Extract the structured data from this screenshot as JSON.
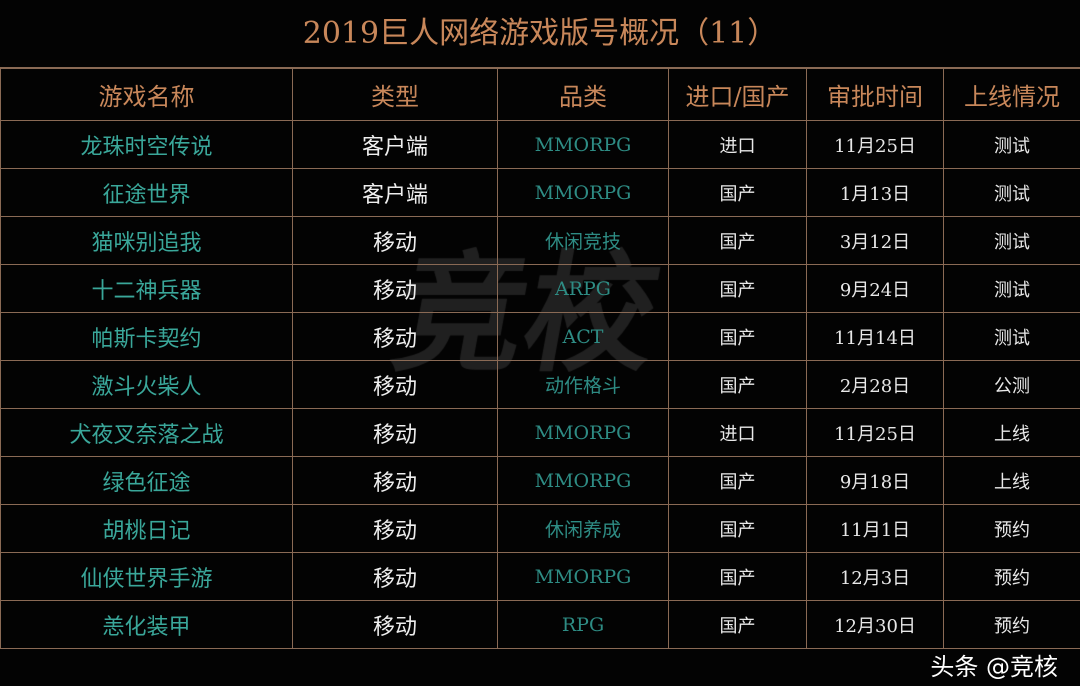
{
  "title": "2019巨人网络游戏版号概况（11）",
  "headers": [
    "游戏名称",
    "类型",
    "品类",
    "进口/国产",
    "审批时间",
    "上线情况"
  ],
  "rows": [
    [
      "龙珠时空传说",
      "客户端",
      "MMORPG",
      "进口",
      "11月25日",
      "测试"
    ],
    [
      "征途世界",
      "客户端",
      "MMORPG",
      "国产",
      "1月13日",
      "测试"
    ],
    [
      "猫咪别追我",
      "移动",
      "休闲竞技",
      "国产",
      "3月12日",
      "测试"
    ],
    [
      "十二神兵器",
      "移动",
      "ARPG",
      "国产",
      "9月24日",
      "测试"
    ],
    [
      "帕斯卡契约",
      "移动",
      "ACT",
      "国产",
      "11月14日",
      "测试"
    ],
    [
      "激斗火柴人",
      "移动",
      "动作格斗",
      "国产",
      "2月28日",
      "公测"
    ],
    [
      "犬夜叉奈落之战",
      "移动",
      "MMORPG",
      "进口",
      "11月25日",
      "上线"
    ],
    [
      "绿色征途",
      "移动",
      "MMORPG",
      "国产",
      "9月18日",
      "上线"
    ],
    [
      "胡桃日记",
      "移动",
      "休闲养成",
      "国产",
      "11月1日",
      "预约"
    ],
    [
      "仙侠世界手游",
      "移动",
      "MMORPG",
      "国产",
      "12月3日",
      "预约"
    ],
    [
      "恙化装甲",
      "移动",
      "RPG",
      "国产",
      "12月30日",
      "预约"
    ]
  ],
  "watermark": "竞校",
  "credit": "头条 @竞核",
  "colors": {
    "header": "#c8875a",
    "name": "#3aa79a",
    "border": "#8a6a55",
    "background": "#030303"
  }
}
